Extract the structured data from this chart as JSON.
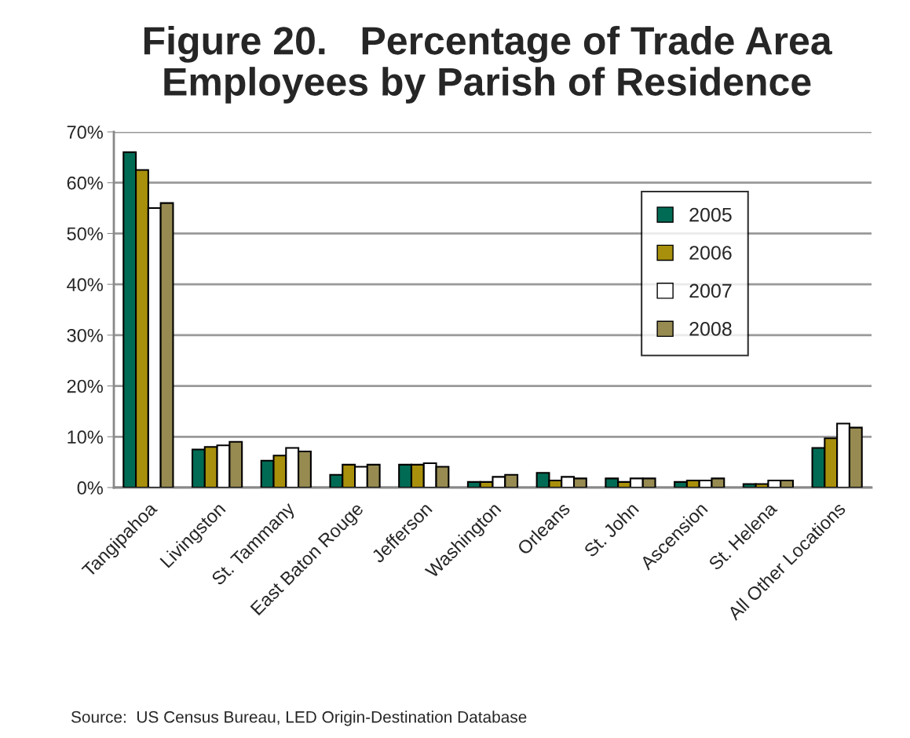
{
  "chart_data": {
    "type": "bar",
    "title": "Figure 20.   Percentage of Trade Area\nEmployees by Parish of Residence",
    "categories": [
      "Tangipahoa",
      "Livingston",
      "St. Tammany",
      "East Baton Rouge",
      "Jefferson",
      "Washington",
      "Orleans",
      "St. John",
      "Ascension",
      "St. Helena",
      "All Other Locations"
    ],
    "series": [
      {
        "name": "2005",
        "color": "#006b54",
        "values": [
          66,
          7.5,
          5.3,
          2.5,
          4.5,
          1.1,
          2.9,
          1.8,
          1.1,
          0.7,
          7.8
        ]
      },
      {
        "name": "2006",
        "color": "#a8900c",
        "values": [
          62.5,
          8,
          6.3,
          4.5,
          4.5,
          1.1,
          1.4,
          1.1,
          1.4,
          0.7,
          9.7
        ]
      },
      {
        "name": "2007",
        "color": "#ffffff",
        "values": [
          55,
          8.3,
          7.8,
          4.1,
          4.8,
          2.1,
          2.1,
          1.8,
          1.4,
          1.4,
          12.6
        ]
      },
      {
        "name": "2008",
        "color": "#978b52",
        "values": [
          56,
          9,
          7.1,
          4.5,
          4.1,
          2.5,
          1.8,
          1.8,
          1.8,
          1.4,
          11.8
        ]
      }
    ],
    "ylim": [
      0,
      70
    ],
    "yticks": [
      {
        "value": 0,
        "label": "0%"
      },
      {
        "value": 10,
        "label": "10%"
      },
      {
        "value": 20,
        "label": "20%"
      },
      {
        "value": 30,
        "label": "30%"
      },
      {
        "value": 40,
        "label": "40%"
      },
      {
        "value": 50,
        "label": "50%"
      },
      {
        "value": 60,
        "label": "60%"
      },
      {
        "value": 70,
        "label": "70%"
      }
    ],
    "grid": "y",
    "legend": "right",
    "annotations": [
      "Source:  US Census Bureau, LED Origin-Destination Database"
    ]
  }
}
